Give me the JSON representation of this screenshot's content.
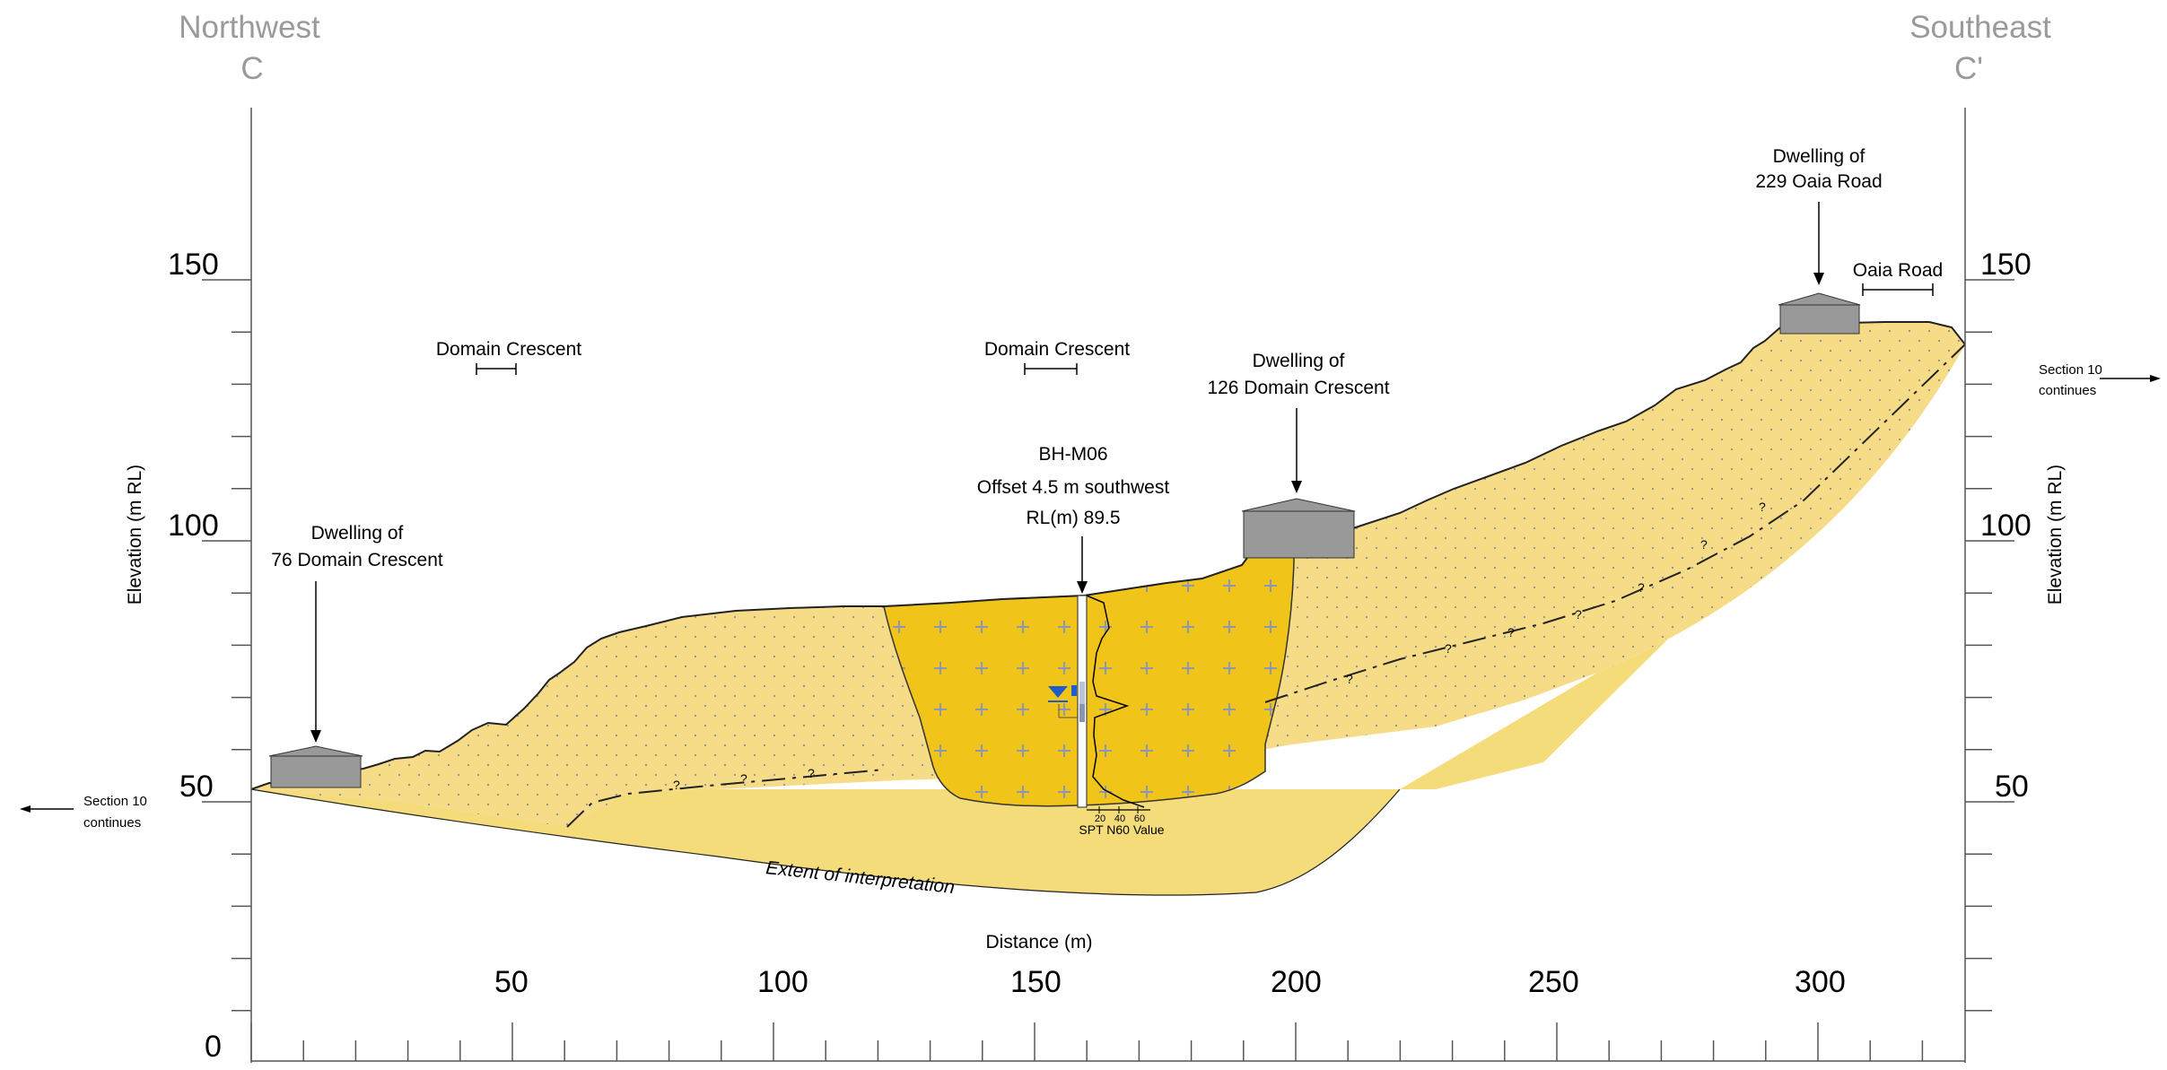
{
  "section": {
    "start": {
      "direction": "Northwest",
      "letter": "C"
    },
    "end": {
      "direction": "Southeast",
      "letter": "C'"
    }
  },
  "axes": {
    "elevation_label": "Elevation (m RL)",
    "distance_label": "Distance (m)",
    "distance_ticks": [
      "50",
      "100",
      "150",
      "200",
      "250",
      "300"
    ],
    "distance_origin": "0",
    "elevation_ticks_left": [
      "150",
      "100",
      "50"
    ],
    "elevation_ticks_right": [
      "150",
      "100",
      "50"
    ]
  },
  "annotations": {
    "section_continues_left": [
      "Section 10",
      "continues"
    ],
    "section_continues_right": [
      "Section 10",
      "continues"
    ],
    "road_1": "Domain Crescent",
    "road_2": "Domain Crescent",
    "road_3": "Oaia Road",
    "dwelling_1": [
      "Dwelling of",
      "76 Domain Crescent"
    ],
    "dwelling_2": [
      "Dwelling of",
      "126 Domain Crescent"
    ],
    "dwelling_3": [
      "Dwelling of",
      "229 Oaia Road"
    ],
    "borehole": [
      "BH-M06",
      "Offset 4.5 m southwest",
      "RL(m) 89.5"
    ],
    "spt_ticks": [
      "20",
      "40",
      "60"
    ],
    "spt_label": "SPT N60 Value",
    "extent": "Extent of interpretation"
  },
  "colors": {
    "fill_unit": "#f0c419",
    "slope_unit": "#f7dc87",
    "base_unit": "#f5dc7a",
    "dwelling": "#999999",
    "water_marker": "#1f5cc9",
    "axis_grey": "#9a9a9a"
  }
}
